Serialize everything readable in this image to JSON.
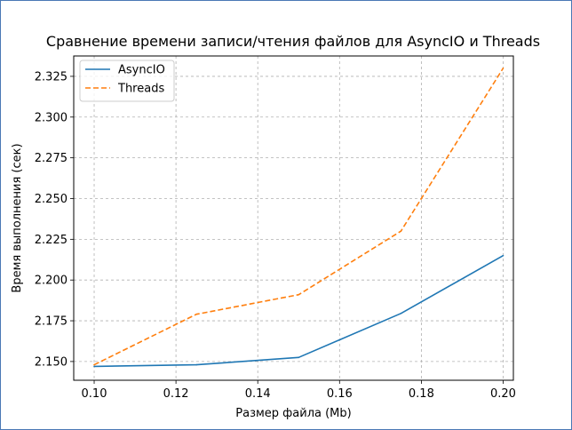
{
  "chart_data": {
    "type": "line",
    "title": "Сравнение времени записи/чтения файлов для AsyncIO и Threads",
    "xlabel": "Размер файла (Mb)",
    "ylabel": "Время выполнения (сек)",
    "xlim": [
      0.095,
      0.2025
    ],
    "ylim": [
      2.1385,
      2.3375
    ],
    "xticks": [
      0.1,
      0.12,
      0.14,
      0.16,
      0.18,
      0.2
    ],
    "xtick_labels": [
      "0.10",
      "0.12",
      "0.14",
      "0.16",
      "0.18",
      "0.20"
    ],
    "yticks": [
      2.15,
      2.175,
      2.2,
      2.225,
      2.25,
      2.275,
      2.3,
      2.325
    ],
    "ytick_labels": [
      "2.150",
      "2.175",
      "2.200",
      "2.225",
      "2.250",
      "2.275",
      "2.300",
      "2.325"
    ],
    "grid": true,
    "legend": "top-left",
    "x": [
      0.1,
      0.125,
      0.15,
      0.175,
      0.2
    ],
    "series": [
      {
        "name": "AsyncIO",
        "values": [
          2.147,
          2.148,
          2.1525,
          2.1795,
          2.215
        ],
        "color": "#1f77b4",
        "style": "solid"
      },
      {
        "name": "Threads",
        "values": [
          2.148,
          2.179,
          2.191,
          2.23,
          2.33
        ],
        "color": "#ff7f0e",
        "style": "dashed"
      }
    ]
  }
}
